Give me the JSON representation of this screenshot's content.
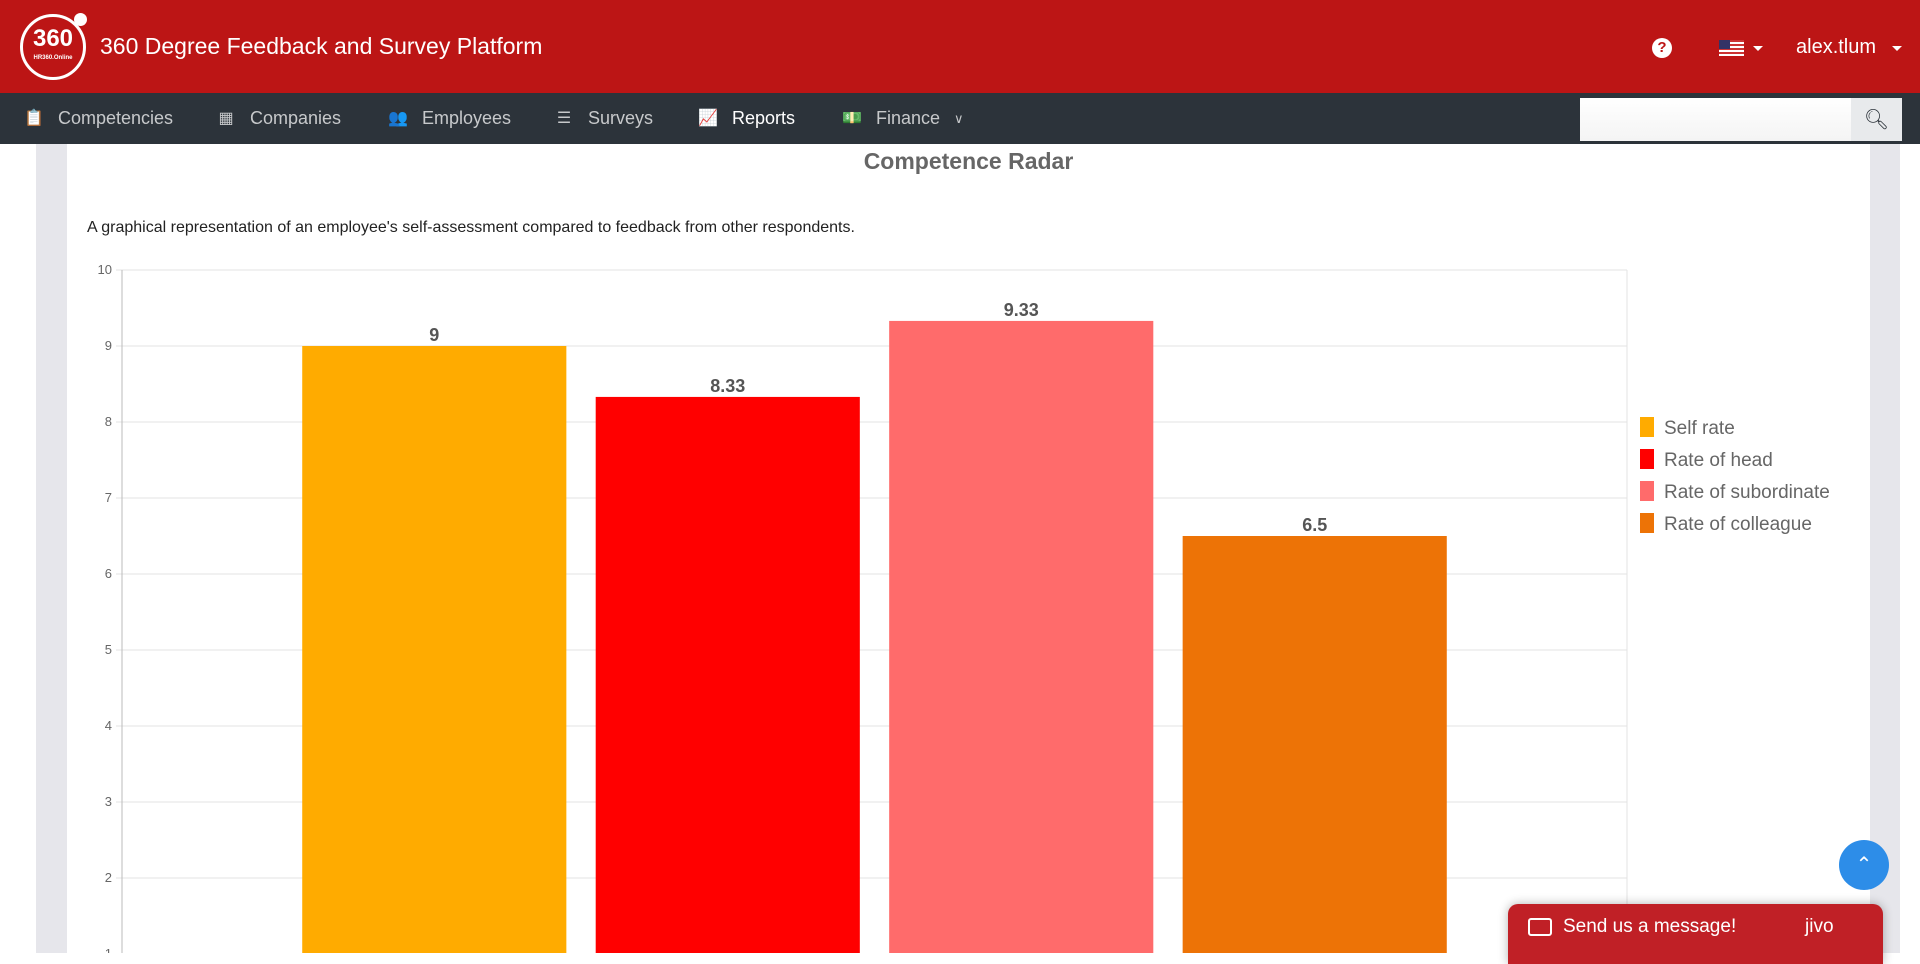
{
  "header": {
    "logo_number": "360",
    "logo_sub": "HR360.Online",
    "title": "360 Degree Feedback and Survey Platform",
    "help_icon": "question-circle-icon",
    "language": "en-US",
    "user": "alex.tlum"
  },
  "nav": {
    "items": [
      {
        "label": "Competencies",
        "icon": "clipboard-check-icon"
      },
      {
        "label": "Companies",
        "icon": "building-icon"
      },
      {
        "label": "Employees",
        "icon": "users-icon"
      },
      {
        "label": "Surveys",
        "icon": "list-icon"
      },
      {
        "label": "Reports",
        "icon": "chart-line-icon",
        "active": true
      },
      {
        "label": "Finance",
        "icon": "money-bill-icon",
        "dropdown": true
      }
    ],
    "search_value": ""
  },
  "page": {
    "title": "Competence Radar",
    "description": "A graphical representation of an employee's self-assessment compared to feedback from other respondents."
  },
  "chart_data": {
    "type": "bar",
    "title": "Competence Radar",
    "categories": [
      ""
    ],
    "series": [
      {
        "name": "Self rate",
        "values": [
          9
        ],
        "color": "#ffab00"
      },
      {
        "name": "Rate of head",
        "values": [
          8.33
        ],
        "color": "#ff0000"
      },
      {
        "name": "Rate of subordinate",
        "values": [
          9.33
        ],
        "color": "#ff6b6b"
      },
      {
        "name": "Rate of colleague",
        "values": [
          6.5
        ],
        "color": "#ed7306"
      }
    ],
    "y_ticks": [
      10,
      9,
      8,
      7,
      6,
      5,
      4,
      3,
      2,
      1
    ],
    "ylim": [
      0,
      10
    ],
    "grid": true,
    "legend_position": "right"
  },
  "chat": {
    "label": "Send us a message!",
    "brand": "jivo"
  }
}
